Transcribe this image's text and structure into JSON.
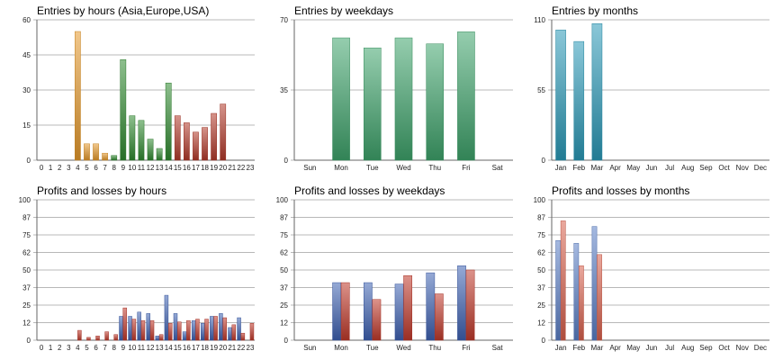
{
  "chart_data": [
    {
      "type": "bar",
      "title": "Entries by hours (Asia,Europe,USA)",
      "categories": [
        "0",
        "1",
        "2",
        "3",
        "4",
        "5",
        "6",
        "7",
        "8",
        "9",
        "10",
        "11",
        "12",
        "13",
        "14",
        "15",
        "16",
        "17",
        "18",
        "19",
        "20",
        "21",
        "22",
        "23"
      ],
      "yticks": [
        "0",
        "15",
        "30",
        "45",
        "60"
      ],
      "ylim": [
        0,
        60
      ],
      "grid": true,
      "values": [
        0,
        0,
        0,
        0,
        55,
        7,
        7,
        3,
        2,
        43,
        19,
        17,
        9,
        5,
        33,
        19,
        16,
        12,
        14,
        20,
        24,
        0,
        0,
        0
      ],
      "bar_colors": [
        "#e69a2c",
        "#e69a2c",
        "#e69a2c",
        "#e69a2c",
        "#e69a2c",
        "#e69a2c",
        "#e69a2c",
        "#e69a2c",
        "#2f8a2f",
        "#2f8a2f",
        "#2f8a2f",
        "#2f8a2f",
        "#2f8a2f",
        "#2f8a2f",
        "#2f8a2f",
        "#b33a2a",
        "#b33a2a",
        "#b33a2a",
        "#b33a2a",
        "#b33a2a",
        "#b33a2a",
        "#b33a2a",
        "#b33a2a",
        "#b33a2a"
      ]
    },
    {
      "type": "bar",
      "title": "Entries by weekdays",
      "categories": [
        "Sun",
        "Mon",
        "Tue",
        "Wed",
        "Thu",
        "Fri",
        "Sat"
      ],
      "yticks": [
        "0",
        "35",
        "70"
      ],
      "ylim": [
        0,
        70
      ],
      "grid": true,
      "values": [
        0,
        61,
        56,
        61,
        58,
        64,
        0
      ],
      "bar_colors": [
        "#3fa46b",
        "#3fa46b",
        "#3fa46b",
        "#3fa46b",
        "#3fa46b",
        "#3fa46b",
        "#3fa46b"
      ]
    },
    {
      "type": "bar",
      "title": "Entries by months",
      "categories": [
        "Jan",
        "Feb",
        "Mar",
        "Apr",
        "May",
        "Jun",
        "Jul",
        "Aug",
        "Sep",
        "Oct",
        "Nov",
        "Dec"
      ],
      "yticks": [
        "0",
        "55",
        "110"
      ],
      "ylim": [
        0,
        110
      ],
      "grid": true,
      "values": [
        102,
        93,
        107,
        0,
        0,
        0,
        0,
        0,
        0,
        0,
        0,
        0
      ],
      "bar_colors": [
        "#2a9ab8",
        "#2a9ab8",
        "#2a9ab8",
        "#2a9ab8",
        "#2a9ab8",
        "#2a9ab8",
        "#2a9ab8",
        "#2a9ab8",
        "#2a9ab8",
        "#2a9ab8",
        "#2a9ab8",
        "#2a9ab8"
      ]
    },
    {
      "type": "bar",
      "title": "Profits and losses by hours",
      "categories": [
        "0",
        "1",
        "2",
        "3",
        "4",
        "5",
        "6",
        "7",
        "8",
        "9",
        "10",
        "11",
        "12",
        "13",
        "14",
        "15",
        "16",
        "17",
        "18",
        "19",
        "20",
        "21",
        "22",
        "23"
      ],
      "yticks": [
        "0",
        "12",
        "25",
        "37",
        "50",
        "62",
        "75",
        "87",
        "100"
      ],
      "ylim": [
        0,
        100
      ],
      "grid": true,
      "series": [
        {
          "values": [
            0,
            0,
            0,
            0,
            0,
            0,
            0,
            0,
            0,
            17,
            17,
            20,
            19,
            3,
            32,
            19,
            6,
            14,
            12,
            17,
            19,
            9,
            16,
            0
          ],
          "color": "#3e62b3"
        },
        {
          "values": [
            0,
            0,
            0,
            0,
            7,
            2,
            3,
            6,
            4,
            23,
            15,
            14,
            14,
            4,
            12,
            13,
            14,
            15,
            15,
            17,
            16,
            11,
            5,
            12
          ],
          "color": "#c0392b"
        }
      ]
    },
    {
      "type": "bar",
      "title": "Profits and losses by weekdays",
      "categories": [
        "Sun",
        "Mon",
        "Tue",
        "Wed",
        "Thu",
        "Fri",
        "Sat"
      ],
      "yticks": [
        "0",
        "12",
        "25",
        "37",
        "50",
        "62",
        "75",
        "87",
        "100"
      ],
      "ylim": [
        0,
        100
      ],
      "grid": true,
      "series": [
        {
          "values": [
            0,
            41,
            41,
            40,
            48,
            53,
            0
          ],
          "color": "#3e62b3"
        },
        {
          "values": [
            0,
            41,
            29,
            46,
            33,
            50,
            0
          ],
          "color": "#c0392b"
        }
      ]
    },
    {
      "type": "bar",
      "title": "Profits and losses by months",
      "categories": [
        "Jan",
        "Feb",
        "Mar",
        "Apr",
        "May",
        "Jun",
        "Jul",
        "Aug",
        "Sep",
        "Oct",
        "Nov",
        "Dec"
      ],
      "yticks": [
        "0",
        "12",
        "25",
        "37",
        "50",
        "62",
        "75",
        "87",
        "100"
      ],
      "ylim": [
        0,
        100
      ],
      "grid": true,
      "series": [
        {
          "values": [
            71,
            69,
            81,
            0,
            0,
            0,
            0,
            0,
            0,
            0,
            0,
            0
          ],
          "color": "#5b7fc7"
        },
        {
          "values": [
            85,
            53,
            61,
            0,
            0,
            0,
            0,
            0,
            0,
            0,
            0,
            0
          ],
          "color": "#d9604c"
        }
      ]
    }
  ]
}
